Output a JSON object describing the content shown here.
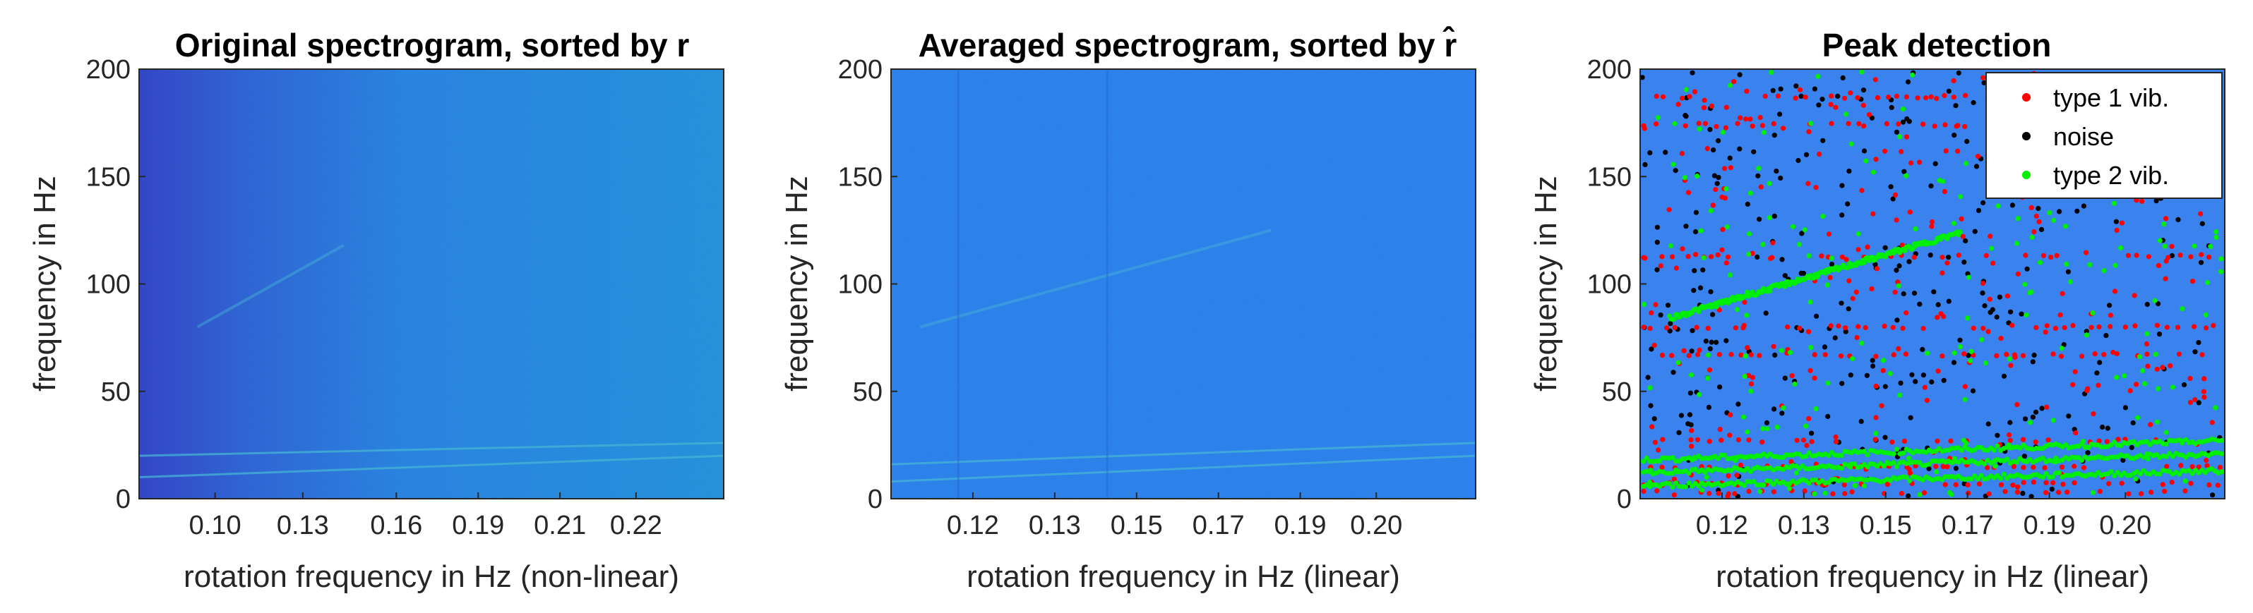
{
  "chart_data": [
    {
      "type": "heatmap",
      "title": "Original spectrogram, sorted by r",
      "xlabel": "rotation frequency in Hz (non-linear)",
      "ylabel": "frequency in Hz",
      "xticks": [
        "0.10",
        "0.13",
        "0.16",
        "0.19",
        "0.21",
        "0.22"
      ],
      "yticks": [
        0,
        50,
        100,
        150,
        200
      ],
      "ylim": [
        0,
        200
      ],
      "x_scale": "non-linear",
      "grid": false,
      "features": [
        {
          "name": "harmonic-low",
          "x": [
            0,
            1
          ],
          "y": [
            10,
            20
          ]
        },
        {
          "name": "harmonic-mid",
          "x": [
            0,
            1
          ],
          "y": [
            20,
            26
          ]
        },
        {
          "name": "harmonic-high",
          "x": [
            0.1,
            0.35
          ],
          "y": [
            80,
            118
          ]
        }
      ],
      "colors": {
        "dark": "#3a44c8",
        "base": "#2f86e6",
        "light": "#2a98e0"
      }
    },
    {
      "type": "heatmap",
      "title": "Averaged spectrogram, sorted by r̂",
      "xlabel": "rotation frequency in Hz (linear)",
      "ylabel": "frequency in Hz",
      "xticks": [
        "0.12",
        "0.13",
        "0.15",
        "0.17",
        "0.19",
        "0.20"
      ],
      "yticks": [
        0,
        50,
        100,
        150,
        200
      ],
      "ylim": [
        0,
        200
      ],
      "x_scale": "linear",
      "grid": false,
      "features": [
        {
          "name": "harmonic-low",
          "x": [
            0,
            1
          ],
          "y": [
            8,
            20
          ]
        },
        {
          "name": "harmonic-mid",
          "x": [
            0,
            1
          ],
          "y": [
            16,
            26
          ]
        },
        {
          "name": "harmonic-high",
          "x": [
            0.05,
            0.65
          ],
          "y": [
            80,
            125
          ]
        }
      ],
      "colors": {
        "base": "#3085ee",
        "line": "#2ea6d8"
      }
    },
    {
      "type": "scatter",
      "title": "Peak detection",
      "xlabel": "rotation frequency in Hz (linear)",
      "ylabel": "frequency in Hz",
      "xticks": [
        "0.12",
        "0.13",
        "0.15",
        "0.17",
        "0.19",
        "0.20"
      ],
      "yticks": [
        0,
        50,
        100,
        150,
        200
      ],
      "xlim": [
        0.11,
        0.21
      ],
      "ylim": [
        0,
        200
      ],
      "grid": false,
      "legend_position": "top-right",
      "series": [
        {
          "name": "type 1 vib.",
          "color": "#ff0000",
          "bands": [
            187,
            174,
            113,
            80,
            67,
            27,
            15,
            7,
            3
          ],
          "scattered_count": 260
        },
        {
          "name": "noise",
          "color": "#000000",
          "scattered_count": 330
        },
        {
          "name": "type 2 vib.",
          "color": "#00ee00",
          "tracks": [
            {
              "x": [
                0.11,
                0.21
              ],
              "y": [
                12,
                21
              ]
            },
            {
              "x": [
                0.11,
                0.21
              ],
              "y": [
                18,
                27
              ]
            },
            {
              "x": [
                0.11,
                0.21
              ],
              "y": [
                6,
                13
              ]
            },
            {
              "x": [
                0.115,
                0.165
              ],
              "y": [
                84,
                124
              ]
            }
          ],
          "scattered_count": 210
        }
      ],
      "background": "#3a82ee"
    }
  ]
}
